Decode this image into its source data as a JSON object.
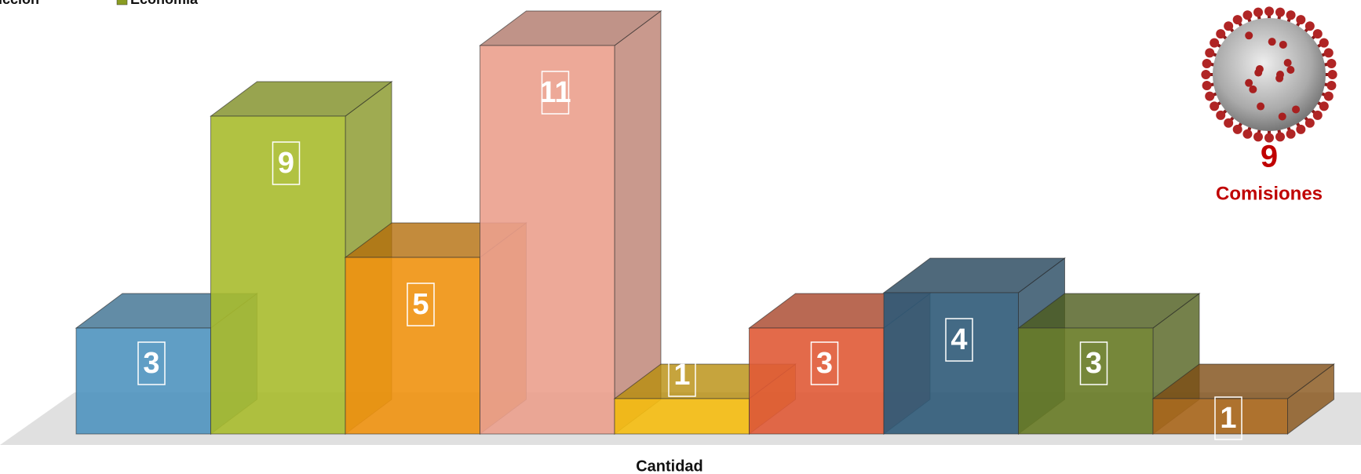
{
  "chart_data": {
    "type": "bar3d",
    "legend": [
      {
        "name": "ucción",
        "color": "#4f93bf"
      },
      {
        "name": "Economía",
        "color": "#8a9c22"
      }
    ],
    "values": [
      3,
      9,
      5,
      11,
      1,
      3,
      4,
      3,
      1
    ],
    "colors": [
      "#4f93bf",
      "#a9bb2e",
      "#f0920f",
      "#eba08d",
      "#f5bd10",
      "#e05a36",
      "#2f5a78",
      "#677a25",
      "#a8661b"
    ],
    "x_label": "Cantidad"
  },
  "counter": {
    "value": "9",
    "label": "Comisiones"
  }
}
